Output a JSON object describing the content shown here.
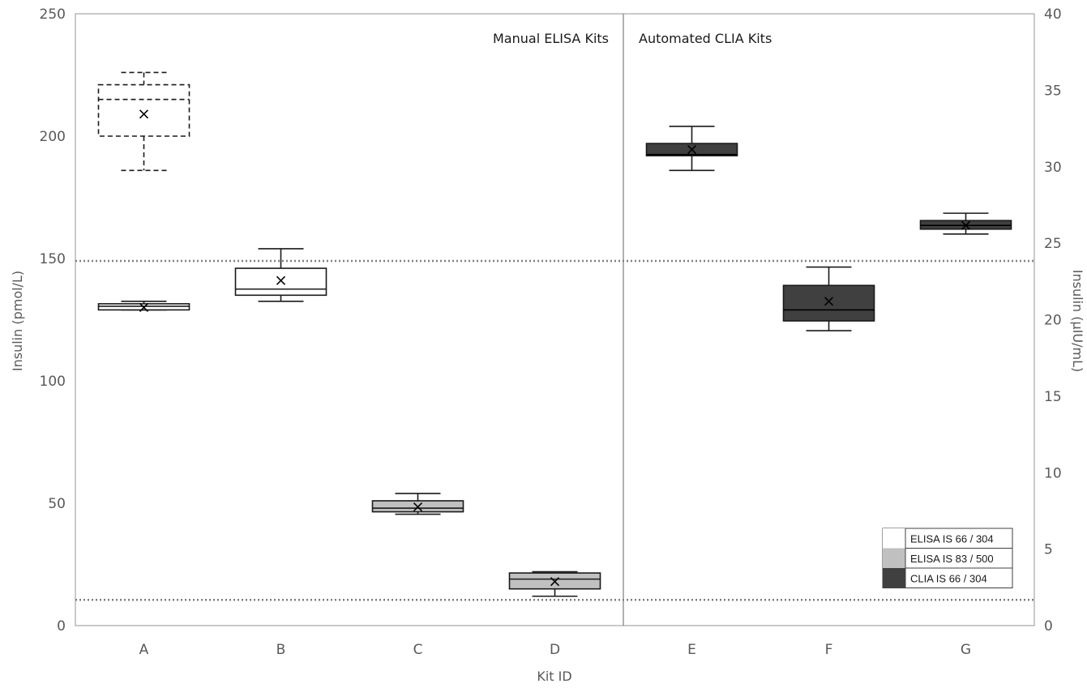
{
  "chart_data": {
    "type": "box",
    "xlabel": "Kit ID",
    "ylabel_left": "Insulin (pmol/L)",
    "ylabel_right": "Insulin (µIU/mL)",
    "ylim_left": [
      0,
      250
    ],
    "ylim_right": [
      0,
      40
    ],
    "yticks_left": [
      "0",
      "50",
      "100",
      "150",
      "200",
      "250"
    ],
    "yticks_right": [
      "0",
      "5",
      "10",
      "15",
      "20",
      "25",
      "30",
      "35",
      "40"
    ],
    "group_labels": [
      "Manual ELISA Kits",
      "Automated CLIA Kits"
    ],
    "reference_lines_pmol": [
      149,
      10.5
    ],
    "legend": [
      {
        "label": "ELISA IS 66 / 304",
        "color": "#ffffff"
      },
      {
        "label": "ELISA IS 83 / 500",
        "color": "#c0c0c0"
      },
      {
        "label": "CLIA IS 66 / 304",
        "color": "#404040"
      }
    ],
    "boxes": [
      {
        "kit": "A",
        "style": "dashed",
        "fill": "#ffffff",
        "whisker_low": 186,
        "q1": 200,
        "median": 215,
        "q3": 221,
        "whisker_high": 226,
        "mean": 209
      },
      {
        "kit": "A",
        "style": "solid",
        "fill": "#ffffff",
        "whisker_low": 129,
        "q1": 129,
        "median": 130.5,
        "q3": 131.5,
        "whisker_high": 132.5,
        "mean": 130
      },
      {
        "kit": "B",
        "style": "solid",
        "fill": "#ffffff",
        "whisker_low": 132.5,
        "q1": 135,
        "median": 137.5,
        "q3": 146,
        "whisker_high": 154,
        "mean": 141
      },
      {
        "kit": "C",
        "style": "solid",
        "fill": "#c0c0c0",
        "whisker_low": 45.5,
        "q1": 46.5,
        "median": 48,
        "q3": 51,
        "whisker_high": 54,
        "mean": 48.5
      },
      {
        "kit": "D",
        "style": "solid",
        "fill": "#c0c0c0",
        "whisker_low": 12,
        "q1": 15,
        "median": 19,
        "q3": 21.5,
        "whisker_high": 22,
        "mean": 18
      },
      {
        "kit": "E",
        "style": "solid",
        "fill": "#404040",
        "whisker_low": 186,
        "q1": 192,
        "median": 192.5,
        "q3": 197,
        "whisker_high": 204,
        "mean": 194.5
      },
      {
        "kit": "F",
        "style": "solid",
        "fill": "#404040",
        "whisker_low": 120.5,
        "q1": 124.5,
        "median": 129,
        "q3": 139,
        "whisker_high": 146.5,
        "mean": 132.5
      },
      {
        "kit": "G",
        "style": "solid",
        "fill": "#404040",
        "whisker_low": 160,
        "q1": 162,
        "median": 163.5,
        "q3": 165.5,
        "whisker_high": 168.5,
        "mean": 163.5
      }
    ],
    "categories": [
      "A",
      "B",
      "C",
      "D",
      "E",
      "F",
      "G"
    ]
  }
}
